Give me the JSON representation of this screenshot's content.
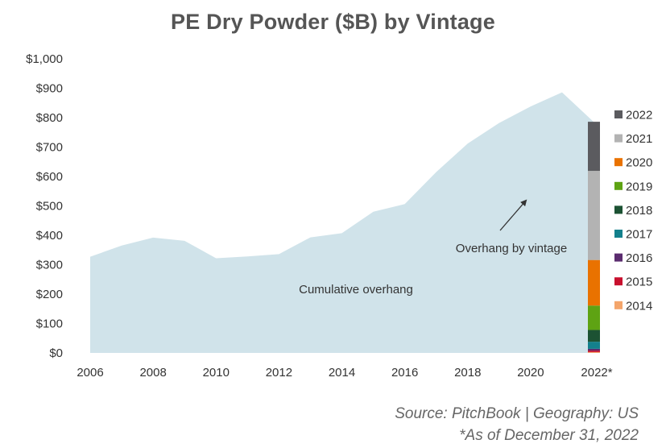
{
  "title": "PE Dry Powder ($B) by Vintage",
  "annotations": {
    "cumulative": "Cumulative overhang",
    "vintage": "Overhang by vintage"
  },
  "source": {
    "line1": "Source: PitchBook | Geography: US",
    "line2": "*As of December 31, 2022"
  },
  "colors": {
    "area": "#d0e3ea",
    "arrow": "#333333"
  },
  "chart_data": {
    "type": "area",
    "title": "PE Dry Powder ($B) by Vintage",
    "xlabel": "",
    "ylabel": "",
    "ylim": [
      0,
      1000
    ],
    "xlim": [
      2006,
      2022
    ],
    "y_ticks": [
      "$0",
      "$100",
      "$200",
      "$300",
      "$400",
      "$500",
      "$600",
      "$700",
      "$800",
      "$900",
      "$1,000"
    ],
    "x_ticks": [
      "2006",
      "2008",
      "2010",
      "2012",
      "2014",
      "2016",
      "2018",
      "2020",
      "2022*"
    ],
    "grid": false,
    "series": [
      {
        "name": "Cumulative overhang",
        "x": [
          2006,
          2007,
          2008,
          2009,
          2010,
          2011,
          2012,
          2013,
          2014,
          2015,
          2016,
          2017,
          2018,
          2019,
          2020,
          2021,
          2022
        ],
        "values": [
          327,
          365,
          392,
          381,
          322,
          328,
          336,
          393,
          407,
          480,
          506,
          615,
          712,
          782,
          838,
          886,
          786
        ]
      }
    ],
    "stacked_bar": {
      "name": "Overhang by vintage",
      "x": 2022,
      "legend_position": "right",
      "segments": [
        {
          "label": "2014",
          "value": 3,
          "color": "#f4a56b"
        },
        {
          "label": "2015",
          "value": 5,
          "color": "#c8102e"
        },
        {
          "label": "2016",
          "value": 6,
          "color": "#5b2c6f"
        },
        {
          "label": "2017",
          "value": 24,
          "color": "#13808c"
        },
        {
          "label": "2018",
          "value": 40,
          "color": "#1c5233"
        },
        {
          "label": "2019",
          "value": 83,
          "color": "#5ea313"
        },
        {
          "label": "2020",
          "value": 155,
          "color": "#e97200"
        },
        {
          "label": "2021",
          "value": 303,
          "color": "#b3b3b3"
        },
        {
          "label": "2022",
          "value": 167,
          "color": "#5b5b5f"
        }
      ]
    }
  }
}
